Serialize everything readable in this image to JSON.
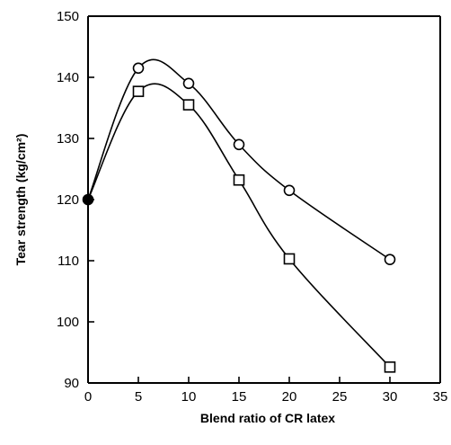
{
  "chart_data": {
    "type": "line",
    "xlabel": "Blend ratio of CR latex",
    "ylabel": "Tear strength (kg/cm²)",
    "xlim": [
      0,
      35
    ],
    "ylim": [
      90,
      150
    ],
    "xticks": [
      0,
      5,
      10,
      15,
      20,
      25,
      30,
      35
    ],
    "yticks": [
      90,
      100,
      110,
      120,
      130,
      140,
      150
    ],
    "grid": false,
    "legend": "none",
    "series": [
      {
        "marker": "circle",
        "x": [
          0,
          5,
          10,
          15,
          20,
          30
        ],
        "y": [
          120,
          141.5,
          139,
          129,
          121.5,
          110.2
        ]
      },
      {
        "marker": "square",
        "x": [
          0,
          5,
          10,
          15,
          20,
          30
        ],
        "y": [
          120,
          137.7,
          135.5,
          123.2,
          110.3,
          92.6
        ]
      }
    ],
    "shared_start_point": {
      "x": 0,
      "y": 120,
      "marker": "filled-circle"
    }
  }
}
